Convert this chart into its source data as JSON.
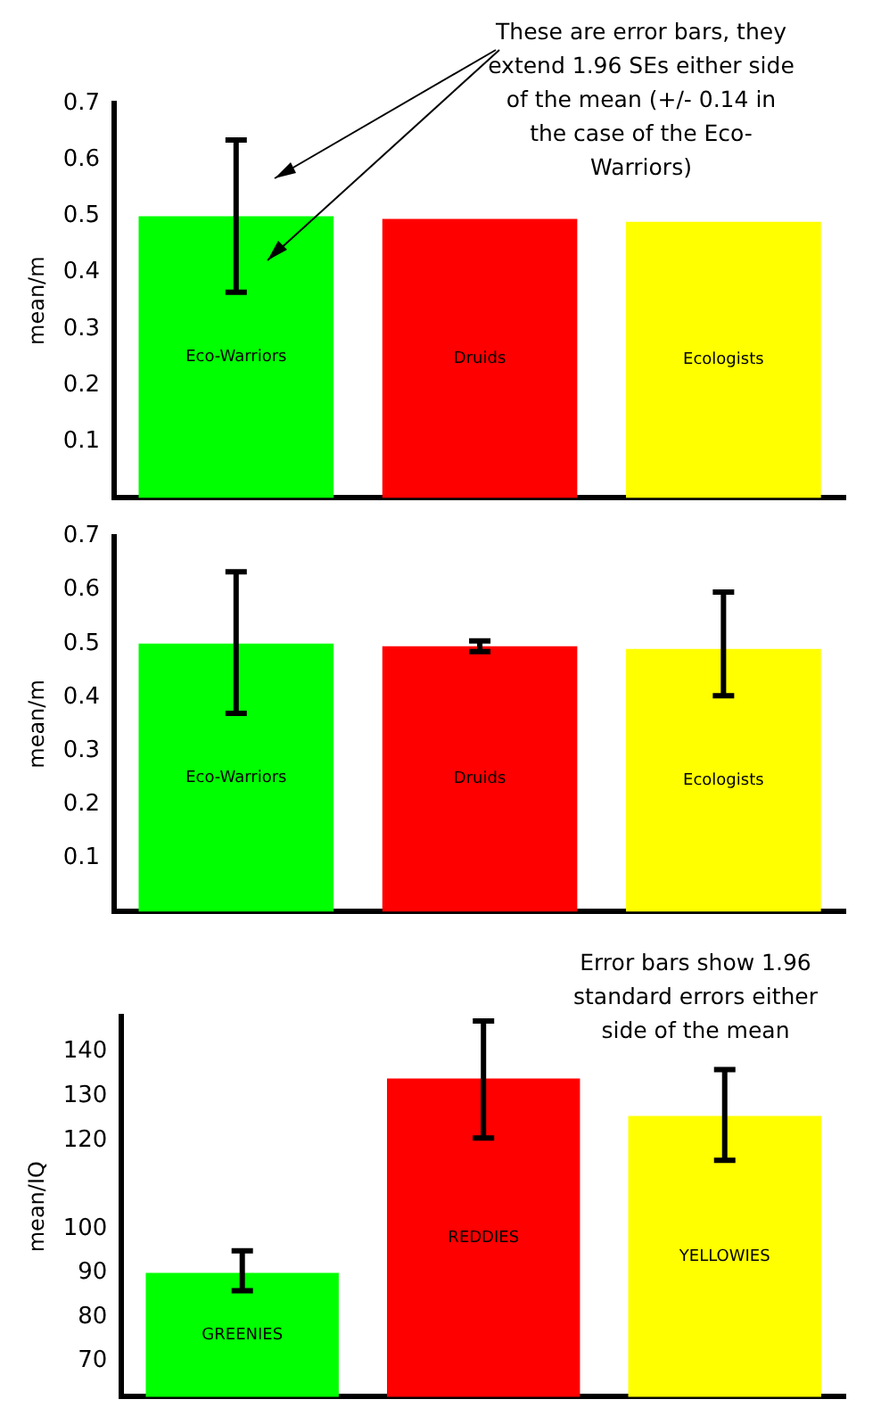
{
  "chart_data": [
    {
      "type": "bar",
      "categories": [
        "Eco-Warriors",
        "Druids",
        "Ecologists"
      ],
      "colors": [
        "#00ff00",
        "#ff0000",
        "#ffff00"
      ],
      "values": [
        0.5,
        0.495,
        0.49
      ],
      "errors": [
        [
          0.365,
          0.635
        ],
        null,
        null
      ],
      "ylim": [
        0,
        0.7
      ],
      "yticks": [
        0.1,
        0.2,
        0.3,
        0.4,
        0.5,
        0.6,
        0.7
      ],
      "ylabel": "mean/m",
      "tick_labels": "y",
      "annotations": [
        "These are error bars, they extend 1.96 SEs either side of the mean (+/- 0.14 in the case of the Eco-Warriors)"
      ]
    },
    {
      "type": "bar",
      "categories": [
        "Eco-Warriors",
        "Druids",
        "Ecologists"
      ],
      "colors": [
        "#00ff00",
        "#ff0000",
        "#ffff00"
      ],
      "values": [
        0.5,
        0.495,
        0.49
      ],
      "errors": [
        [
          0.37,
          0.634
        ],
        [
          0.485,
          0.505
        ],
        [
          0.403,
          0.596
        ]
      ],
      "ylim": [
        0,
        0.7
      ],
      "yticks": [
        0.1,
        0.2,
        0.3,
        0.4,
        0.5,
        0.6,
        0.7
      ],
      "ylabel": "mean/m",
      "tick_labels": "y"
    },
    {
      "type": "bar",
      "categories": [
        "GREENIES",
        "REDDIES",
        "YELLOWIES"
      ],
      "colors": [
        "#00ff00",
        "#ff0000",
        "#ffff00"
      ],
      "values": [
        90,
        134,
        125.5
      ],
      "errors": [
        [
          86,
          95
        ],
        [
          120.5,
          147
        ],
        [
          115.5,
          136
        ]
      ],
      "ylim": [
        62,
        148
      ],
      "yticks": [
        70,
        80,
        90,
        100,
        120,
        130,
        140
      ],
      "ylabel": "mean/IQ",
      "tick_labels": "y",
      "annotations": [
        "Error bars show 1.96 standard errors either side of the mean"
      ]
    }
  ]
}
